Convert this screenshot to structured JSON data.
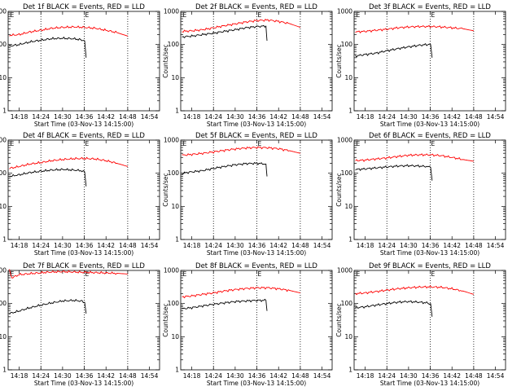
{
  "chart_data": [
    {
      "type": "line",
      "title": "Det 1f BLACK = Events, RED = LLD",
      "xlabel": "Start Time (03-Nov-13 14:15:00)",
      "ylabel": "Counts/sec",
      "ylog": true,
      "ylim": [
        1,
        1000
      ],
      "ytick_labels": [
        "1",
        "10",
        "100",
        "1000"
      ],
      "xlim_minutes": [
        14.95,
        56.8
      ],
      "xtick_labels": [
        "14:18",
        "14:24",
        "14:30",
        "14:36",
        "14:42",
        "14:48",
        "14:54"
      ],
      "xtick_minutes": [
        18,
        24,
        30,
        36,
        42,
        48,
        54
      ],
      "marker_labels": [
        "E",
        "E"
      ],
      "marker_minutes": [
        15.3,
        36
      ],
      "dotted_lines_minutes": [
        24,
        36,
        48
      ],
      "series": [
        {
          "color": "#000000",
          "x_minutes": [
            15.3,
            18,
            21,
            24,
            27,
            30,
            33,
            35,
            36.1,
            36.5
          ],
          "values": [
            90,
            100,
            120,
            135,
            150,
            155,
            150,
            140,
            130,
            40
          ]
        },
        {
          "color": "#ff0000",
          "x_minutes": [
            15.3,
            18,
            21,
            24,
            27,
            30,
            33,
            36,
            39,
            42,
            45,
            48
          ],
          "values": [
            190,
            200,
            240,
            270,
            310,
            330,
            340,
            330,
            310,
            270,
            230,
            180
          ]
        }
      ]
    },
    {
      "type": "line",
      "title": "Det 2f BLACK = Events, RED = LLD",
      "xlabel": "Start Time (03-Nov-13 14:15:00)",
      "ylabel": "Counts/sec",
      "ylog": true,
      "ylim": [
        1,
        1000
      ],
      "ytick_labels": [
        "1",
        "10",
        "100",
        "1000"
      ],
      "xlim_minutes": [
        14.95,
        56.8
      ],
      "xtick_labels": [
        "14:18",
        "14:24",
        "14:30",
        "14:36",
        "14:42",
        "14:48",
        "14:54"
      ],
      "xtick_minutes": [
        18,
        24,
        30,
        36,
        42,
        48,
        54
      ],
      "marker_labels": [
        "E",
        "E"
      ],
      "marker_minutes": [
        15.3,
        36
      ],
      "dotted_lines_minutes": [
        24,
        36,
        48
      ],
      "series": [
        {
          "color": "#000000",
          "x_minutes": [
            15.3,
            18,
            21,
            24,
            27,
            30,
            33,
            36,
            38.5,
            38.8
          ],
          "values": [
            170,
            180,
            200,
            220,
            250,
            280,
            320,
            350,
            360,
            130
          ]
        },
        {
          "color": "#ff0000",
          "x_minutes": [
            15.3,
            18,
            21,
            24,
            27,
            30,
            33,
            36,
            39,
            42,
            45,
            48
          ],
          "values": [
            250,
            260,
            280,
            320,
            370,
            420,
            480,
            530,
            550,
            500,
            430,
            330
          ]
        }
      ]
    },
    {
      "type": "line",
      "title": "Det 3f BLACK = Events, RED = LLD",
      "xlabel": "Start Time (03-Nov-13 14:15:00)",
      "ylabel": "Counts/sec",
      "ylog": true,
      "ylim": [
        1,
        1000
      ],
      "ytick_labels": [
        "1",
        "10",
        "100",
        "1000"
      ],
      "xlim_minutes": [
        14.95,
        56.8
      ],
      "xtick_labels": [
        "14:18",
        "14:24",
        "14:30",
        "14:36",
        "14:42",
        "14:48",
        "14:54"
      ],
      "xtick_minutes": [
        18,
        24,
        30,
        36,
        42,
        48,
        54
      ],
      "marker_labels": [
        "E",
        "E"
      ],
      "marker_minutes": [
        15.3,
        36
      ],
      "dotted_lines_minutes": [
        24,
        36,
        48
      ],
      "series": [
        {
          "color": "#000000",
          "x_minutes": [
            15.3,
            18,
            21,
            24,
            27,
            30,
            33,
            35,
            36.1,
            36.5
          ],
          "values": [
            45,
            50,
            55,
            65,
            75,
            85,
            95,
            100,
            100,
            40
          ]
        },
        {
          "color": "#ff0000",
          "x_minutes": [
            15.3,
            18,
            21,
            24,
            27,
            30,
            33,
            36,
            39,
            42,
            45,
            48
          ],
          "values": [
            240,
            250,
            270,
            290,
            320,
            340,
            350,
            350,
            340,
            320,
            300,
            260
          ]
        }
      ]
    },
    {
      "type": "line",
      "title": "Det 4f BLACK = Events, RED = LLD",
      "xlabel": "Start Time (03-Nov-13 14:15:00)",
      "ylabel": "Counts/sec",
      "ylog": true,
      "ylim": [
        1,
        1000
      ],
      "ytick_labels": [
        "1",
        "10",
        "100",
        "1000"
      ],
      "xlim_minutes": [
        14.95,
        56.8
      ],
      "xtick_labels": [
        "14:18",
        "14:24",
        "14:30",
        "14:36",
        "14:42",
        "14:48",
        "14:54"
      ],
      "xtick_minutes": [
        18,
        24,
        30,
        36,
        42,
        48,
        54
      ],
      "marker_labels": [
        "E",
        "E"
      ],
      "marker_minutes": [
        15.3,
        36
      ],
      "dotted_lines_minutes": [
        24,
        36,
        48
      ],
      "series": [
        {
          "color": "#000000",
          "x_minutes": [
            15.3,
            18,
            21,
            24,
            27,
            30,
            33,
            35,
            36.1,
            36.5
          ],
          "values": [
            80,
            90,
            105,
            115,
            125,
            130,
            125,
            120,
            110,
            40
          ]
        },
        {
          "color": "#ff0000",
          "x_minutes": [
            15.3,
            18,
            21,
            24,
            27,
            30,
            33,
            36,
            39,
            42,
            45,
            48
          ],
          "values": [
            140,
            160,
            190,
            210,
            240,
            260,
            275,
            280,
            270,
            240,
            200,
            160
          ]
        }
      ]
    },
    {
      "type": "line",
      "title": "Det 5f BLACK = Events, RED = LLD",
      "xlabel": "Start Time (03-Nov-13 14:15:00)",
      "ylabel": "Counts/sec",
      "ylog": true,
      "ylim": [
        1,
        1000
      ],
      "ytick_labels": [
        "1",
        "10",
        "100",
        "1000"
      ],
      "xlim_minutes": [
        14.95,
        56.8
      ],
      "xtick_labels": [
        "14:18",
        "14:24",
        "14:30",
        "14:36",
        "14:42",
        "14:48",
        "14:54"
      ],
      "xtick_minutes": [
        18,
        24,
        30,
        36,
        42,
        48,
        54
      ],
      "marker_labels": [
        "E",
        "E"
      ],
      "marker_minutes": [
        15.3,
        36
      ],
      "dotted_lines_minutes": [
        24,
        36,
        48
      ],
      "series": [
        {
          "color": "#000000",
          "x_minutes": [
            15.3,
            18,
            21,
            24,
            27,
            30,
            33,
            36,
            38.5,
            38.8
          ],
          "values": [
            100,
            110,
            120,
            140,
            160,
            180,
            195,
            200,
            190,
            80
          ]
        },
        {
          "color": "#ff0000",
          "x_minutes": [
            15.3,
            18,
            21,
            24,
            27,
            30,
            33,
            36,
            39,
            42,
            45,
            48
          ],
          "values": [
            350,
            370,
            400,
            440,
            490,
            540,
            580,
            600,
            590,
            550,
            480,
            400
          ]
        }
      ]
    },
    {
      "type": "line",
      "title": "Det 6f BLACK = Events, RED = LLD",
      "xlabel": "Start Time (03-Nov-13 14:15:00)",
      "ylabel": "Counts/sec",
      "ylog": true,
      "ylim": [
        1,
        1000
      ],
      "ytick_labels": [
        "1",
        "10",
        "100",
        "1000"
      ],
      "xlim_minutes": [
        14.95,
        56.8
      ],
      "xtick_labels": [
        "14:18",
        "14:24",
        "14:30",
        "14:36",
        "14:42",
        "14:48",
        "14:54"
      ],
      "xtick_minutes": [
        18,
        24,
        30,
        36,
        42,
        48,
        54
      ],
      "marker_labels": [
        "E",
        "E"
      ],
      "marker_minutes": [
        15.3,
        36
      ],
      "dotted_lines_minutes": [
        24,
        36,
        48
      ],
      "series": [
        {
          "color": "#000000",
          "x_minutes": [
            15.3,
            18,
            21,
            24,
            27,
            30,
            33,
            35,
            36.1,
            36.5
          ],
          "values": [
            130,
            135,
            145,
            155,
            165,
            170,
            165,
            160,
            150,
            60
          ]
        },
        {
          "color": "#ff0000",
          "x_minutes": [
            15.3,
            18,
            21,
            24,
            27,
            30,
            33,
            36,
            39,
            42,
            45,
            48
          ],
          "values": [
            240,
            250,
            270,
            290,
            320,
            350,
            360,
            360,
            340,
            300,
            260,
            230
          ]
        }
      ]
    },
    {
      "type": "line",
      "title": "Det 7f BLACK = Events, RED = LLD",
      "xlabel": "Start Time (03-Nov-13 14:15:00)",
      "ylabel": "Counts/sec",
      "ylog": true,
      "ylim": [
        1,
        1000
      ],
      "ytick_labels": [
        "1",
        "10",
        "100",
        "1000"
      ],
      "xlim_minutes": [
        14.95,
        56.8
      ],
      "xtick_labels": [
        "14:18",
        "14:24",
        "14:30",
        "14:36",
        "14:42",
        "14:48",
        "14:54"
      ],
      "xtick_minutes": [
        18,
        24,
        30,
        36,
        42,
        48,
        54
      ],
      "marker_labels": [
        "E",
        "E"
      ],
      "marker_minutes": [
        15.3,
        36
      ],
      "dotted_lines_minutes": [
        24,
        36,
        48
      ],
      "series": [
        {
          "color": "#000000",
          "x_minutes": [
            15.3,
            18,
            21,
            24,
            27,
            30,
            33,
            35,
            36.1,
            36.5
          ],
          "values": [
            50,
            60,
            75,
            90,
            105,
            120,
            125,
            120,
            110,
            50
          ]
        },
        {
          "color": "#ff0000",
          "x_minutes": [
            15.3,
            16,
            18,
            21,
            24,
            27,
            30,
            33,
            36,
            39,
            42,
            45,
            48
          ],
          "values": [
            1000,
            600,
            750,
            800,
            850,
            900,
            920,
            900,
            880,
            860,
            840,
            820,
            780
          ]
        }
      ]
    },
    {
      "type": "line",
      "title": "Det 8f BLACK = Events, RED = LLD",
      "xlabel": "Start Time (03-Nov-13 14:15:00)",
      "ylabel": "Counts/sec",
      "ylog": true,
      "ylim": [
        1,
        1000
      ],
      "ytick_labels": [
        "1",
        "10",
        "100",
        "1000"
      ],
      "xlim_minutes": [
        14.95,
        56.8
      ],
      "xtick_labels": [
        "14:18",
        "14:24",
        "14:30",
        "14:36",
        "14:42",
        "14:48",
        "14:54"
      ],
      "xtick_minutes": [
        18,
        24,
        30,
        36,
        42,
        48,
        54
      ],
      "marker_labels": [
        "E",
        "E"
      ],
      "marker_minutes": [
        15.3,
        36
      ],
      "dotted_lines_minutes": [
        24,
        36,
        48
      ],
      "series": [
        {
          "color": "#000000",
          "x_minutes": [
            15.3,
            18,
            21,
            24,
            27,
            30,
            33,
            36,
            38.5,
            38.8
          ],
          "values": [
            70,
            75,
            85,
            95,
            105,
            115,
            120,
            125,
            125,
            60
          ]
        },
        {
          "color": "#ff0000",
          "x_minutes": [
            15.3,
            18,
            21,
            24,
            27,
            30,
            33,
            36,
            39,
            42,
            45,
            48
          ],
          "values": [
            160,
            170,
            190,
            210,
            240,
            265,
            285,
            300,
            300,
            280,
            250,
            210
          ]
        }
      ]
    },
    {
      "type": "line",
      "title": "Det 9f BLACK = Events, RED = LLD",
      "xlabel": "Start Time (03-Nov-13 14:15:00)",
      "ylabel": "Counts/sec",
      "ylog": true,
      "ylim": [
        1,
        1000
      ],
      "ytick_labels": [
        "1",
        "10",
        "100",
        "1000"
      ],
      "xlim_minutes": [
        14.95,
        56.8
      ],
      "xtick_labels": [
        "14:18",
        "14:24",
        "14:30",
        "14:36",
        "14:42",
        "14:48",
        "14:54"
      ],
      "xtick_minutes": [
        18,
        24,
        30,
        36,
        42,
        48,
        54
      ],
      "marker_labels": [
        "E",
        "E"
      ],
      "marker_minutes": [
        15.3,
        36
      ],
      "dotted_lines_minutes": [
        24,
        36,
        48
      ],
      "series": [
        {
          "color": "#000000",
          "x_minutes": [
            15.3,
            18,
            21,
            24,
            27,
            30,
            33,
            35,
            36.1,
            36.5
          ],
          "values": [
            75,
            80,
            90,
            100,
            110,
            115,
            110,
            105,
            100,
            40
          ]
        },
        {
          "color": "#ff0000",
          "x_minutes": [
            15.3,
            18,
            21,
            24,
            27,
            30,
            33,
            36,
            39,
            42,
            45,
            48
          ],
          "values": [
            200,
            210,
            230,
            255,
            280,
            300,
            315,
            320,
            310,
            280,
            240,
            190
          ]
        }
      ]
    }
  ]
}
